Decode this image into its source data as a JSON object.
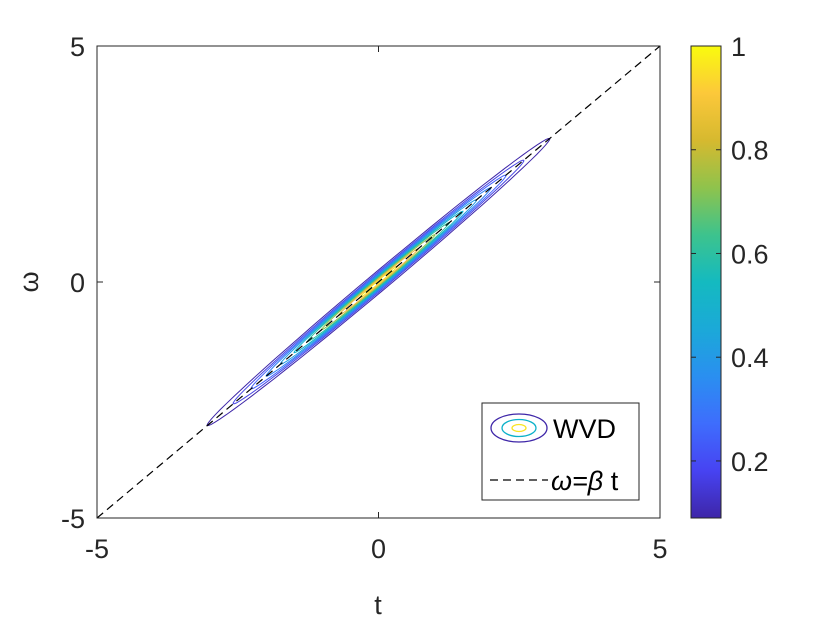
{
  "chart_data": {
    "type": "contour",
    "title": "",
    "xlabel": "t",
    "ylabel": "ω",
    "xlim": [
      -5,
      5
    ],
    "ylim": [
      -5,
      5
    ],
    "x_ticks": [
      {
        "value": -5,
        "label": "-5"
      },
      {
        "value": 0,
        "label": "0"
      },
      {
        "value": 5,
        "label": "5"
      }
    ],
    "y_ticks": [
      {
        "value": -5,
        "label": "-5"
      },
      {
        "value": 0,
        "label": "0"
      },
      {
        "value": 5,
        "label": "5"
      }
    ],
    "grid": false,
    "contour_series": {
      "name": "WVD",
      "center": [
        0,
        0
      ],
      "major_axis_slope": 1,
      "contour_levels": [
        {
          "level": 0.1,
          "color": "#3e26a8",
          "half_length": 4.3,
          "half_width": 0.18
        },
        {
          "level": 0.2,
          "color": "#4543e4",
          "half_length": 3.65,
          "half_width": 0.155
        },
        {
          "level": 0.3,
          "color": "#4262fd",
          "half_length": 3.2,
          "half_width": 0.136
        },
        {
          "level": 0.4,
          "color": "#2d80f4",
          "half_length": 2.82,
          "half_width": 0.12
        },
        {
          "level": 0.5,
          "color": "#1f9ce2",
          "half_length": 2.46,
          "half_width": 0.105
        },
        {
          "level": 0.6,
          "color": "#0cb1c9",
          "half_length": 2.12,
          "half_width": 0.09
        },
        {
          "level": 0.7,
          "color": "#2ebe9b",
          "half_length": 1.78,
          "half_width": 0.076
        },
        {
          "level": 0.8,
          "color": "#91c04e",
          "half_length": 1.42,
          "half_width": 0.06
        },
        {
          "level": 0.9,
          "color": "#f3b939",
          "half_length": 1.0,
          "half_width": 0.043
        },
        {
          "level": 1.0,
          "color": "#f9e424",
          "half_length": 0.5,
          "half_width": 0.024
        }
      ]
    },
    "reference_line": {
      "name": "ω=β t",
      "label_main": "ω=",
      "label_beta": "β",
      "label_t": " t",
      "slope": 1,
      "intercept": 0,
      "style": "dashed",
      "color": "#000000"
    },
    "legend": {
      "placement": "bottom-right",
      "entries": [
        "WVD",
        "ω=β t"
      ]
    },
    "colorbar": {
      "range": [
        0.09,
        1
      ],
      "ticks": [
        {
          "value": 1,
          "label": "1"
        },
        {
          "value": 0.8,
          "label": "0.8"
        },
        {
          "value": 0.6,
          "label": "0.6"
        },
        {
          "value": 0.4,
          "label": "0.4"
        },
        {
          "value": 0.2,
          "label": "0.2"
        }
      ],
      "colormap": "parula",
      "stops": [
        "#3e26a8",
        "#4743f2",
        "#3e6dfd",
        "#2a8ff0",
        "#1ba9d8",
        "#14bac0",
        "#3dc38d",
        "#8fc34c",
        "#d6b92f",
        "#fcc83a",
        "#f9fb0e"
      ]
    }
  }
}
